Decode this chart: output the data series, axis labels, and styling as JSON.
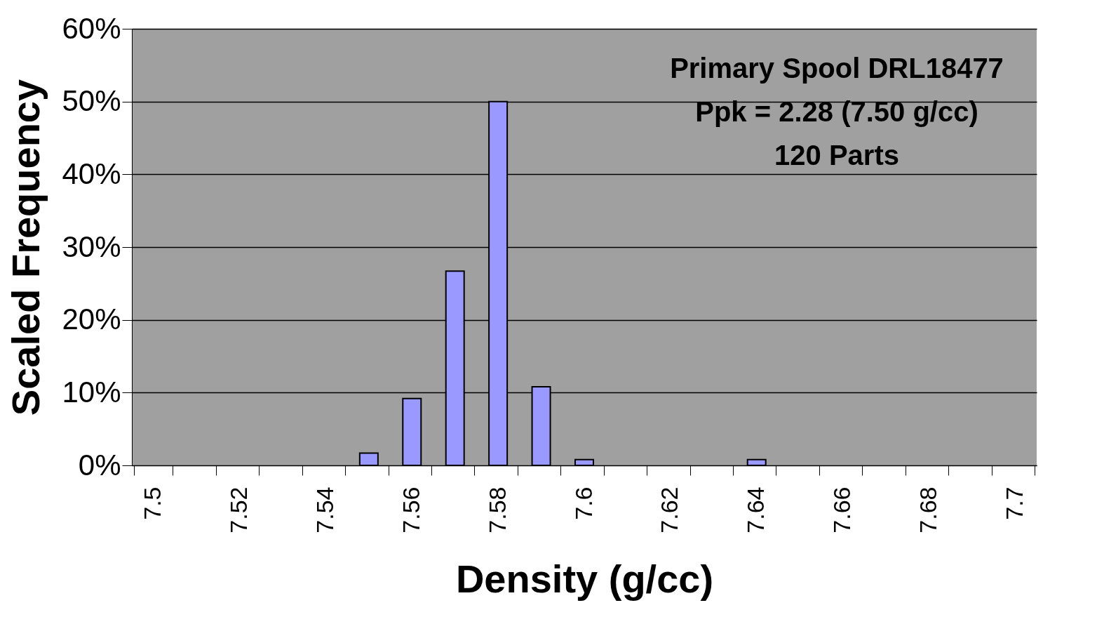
{
  "chart_data": {
    "type": "bar",
    "xlabel": "Density (g/cc)",
    "ylabel": "Scaled Frequency",
    "categories": [
      "7.5",
      null,
      "7.52",
      null,
      "7.54",
      null,
      "7.56",
      null,
      "7.58",
      null,
      "7.6",
      null,
      "7.62",
      null,
      "7.64",
      null,
      "7.66",
      null,
      "7.68",
      null,
      "7.7"
    ],
    "values": [
      0,
      0,
      0,
      0,
      0,
      1.7,
      9.2,
      26.7,
      50,
      10.8,
      0.8,
      0,
      0,
      0,
      0.8,
      0,
      0,
      0,
      0,
      0,
      0
    ],
    "color": "#9999ff",
    "ylim": [
      0,
      60
    ],
    "yticks": [
      {
        "value": 0,
        "label": "0%"
      },
      {
        "value": 10,
        "label": "10%"
      },
      {
        "value": 20,
        "label": "20%"
      },
      {
        "value": 30,
        "label": "30%"
      },
      {
        "value": 40,
        "label": "40%"
      },
      {
        "value": 50,
        "label": "50%"
      },
      {
        "value": 60,
        "label": "60%"
      }
    ],
    "grid": "y",
    "annotations": [
      "Primary Spool DRL18477",
      "Ppk = 2.28 (7.50 g/cc)",
      "120  Parts"
    ]
  }
}
